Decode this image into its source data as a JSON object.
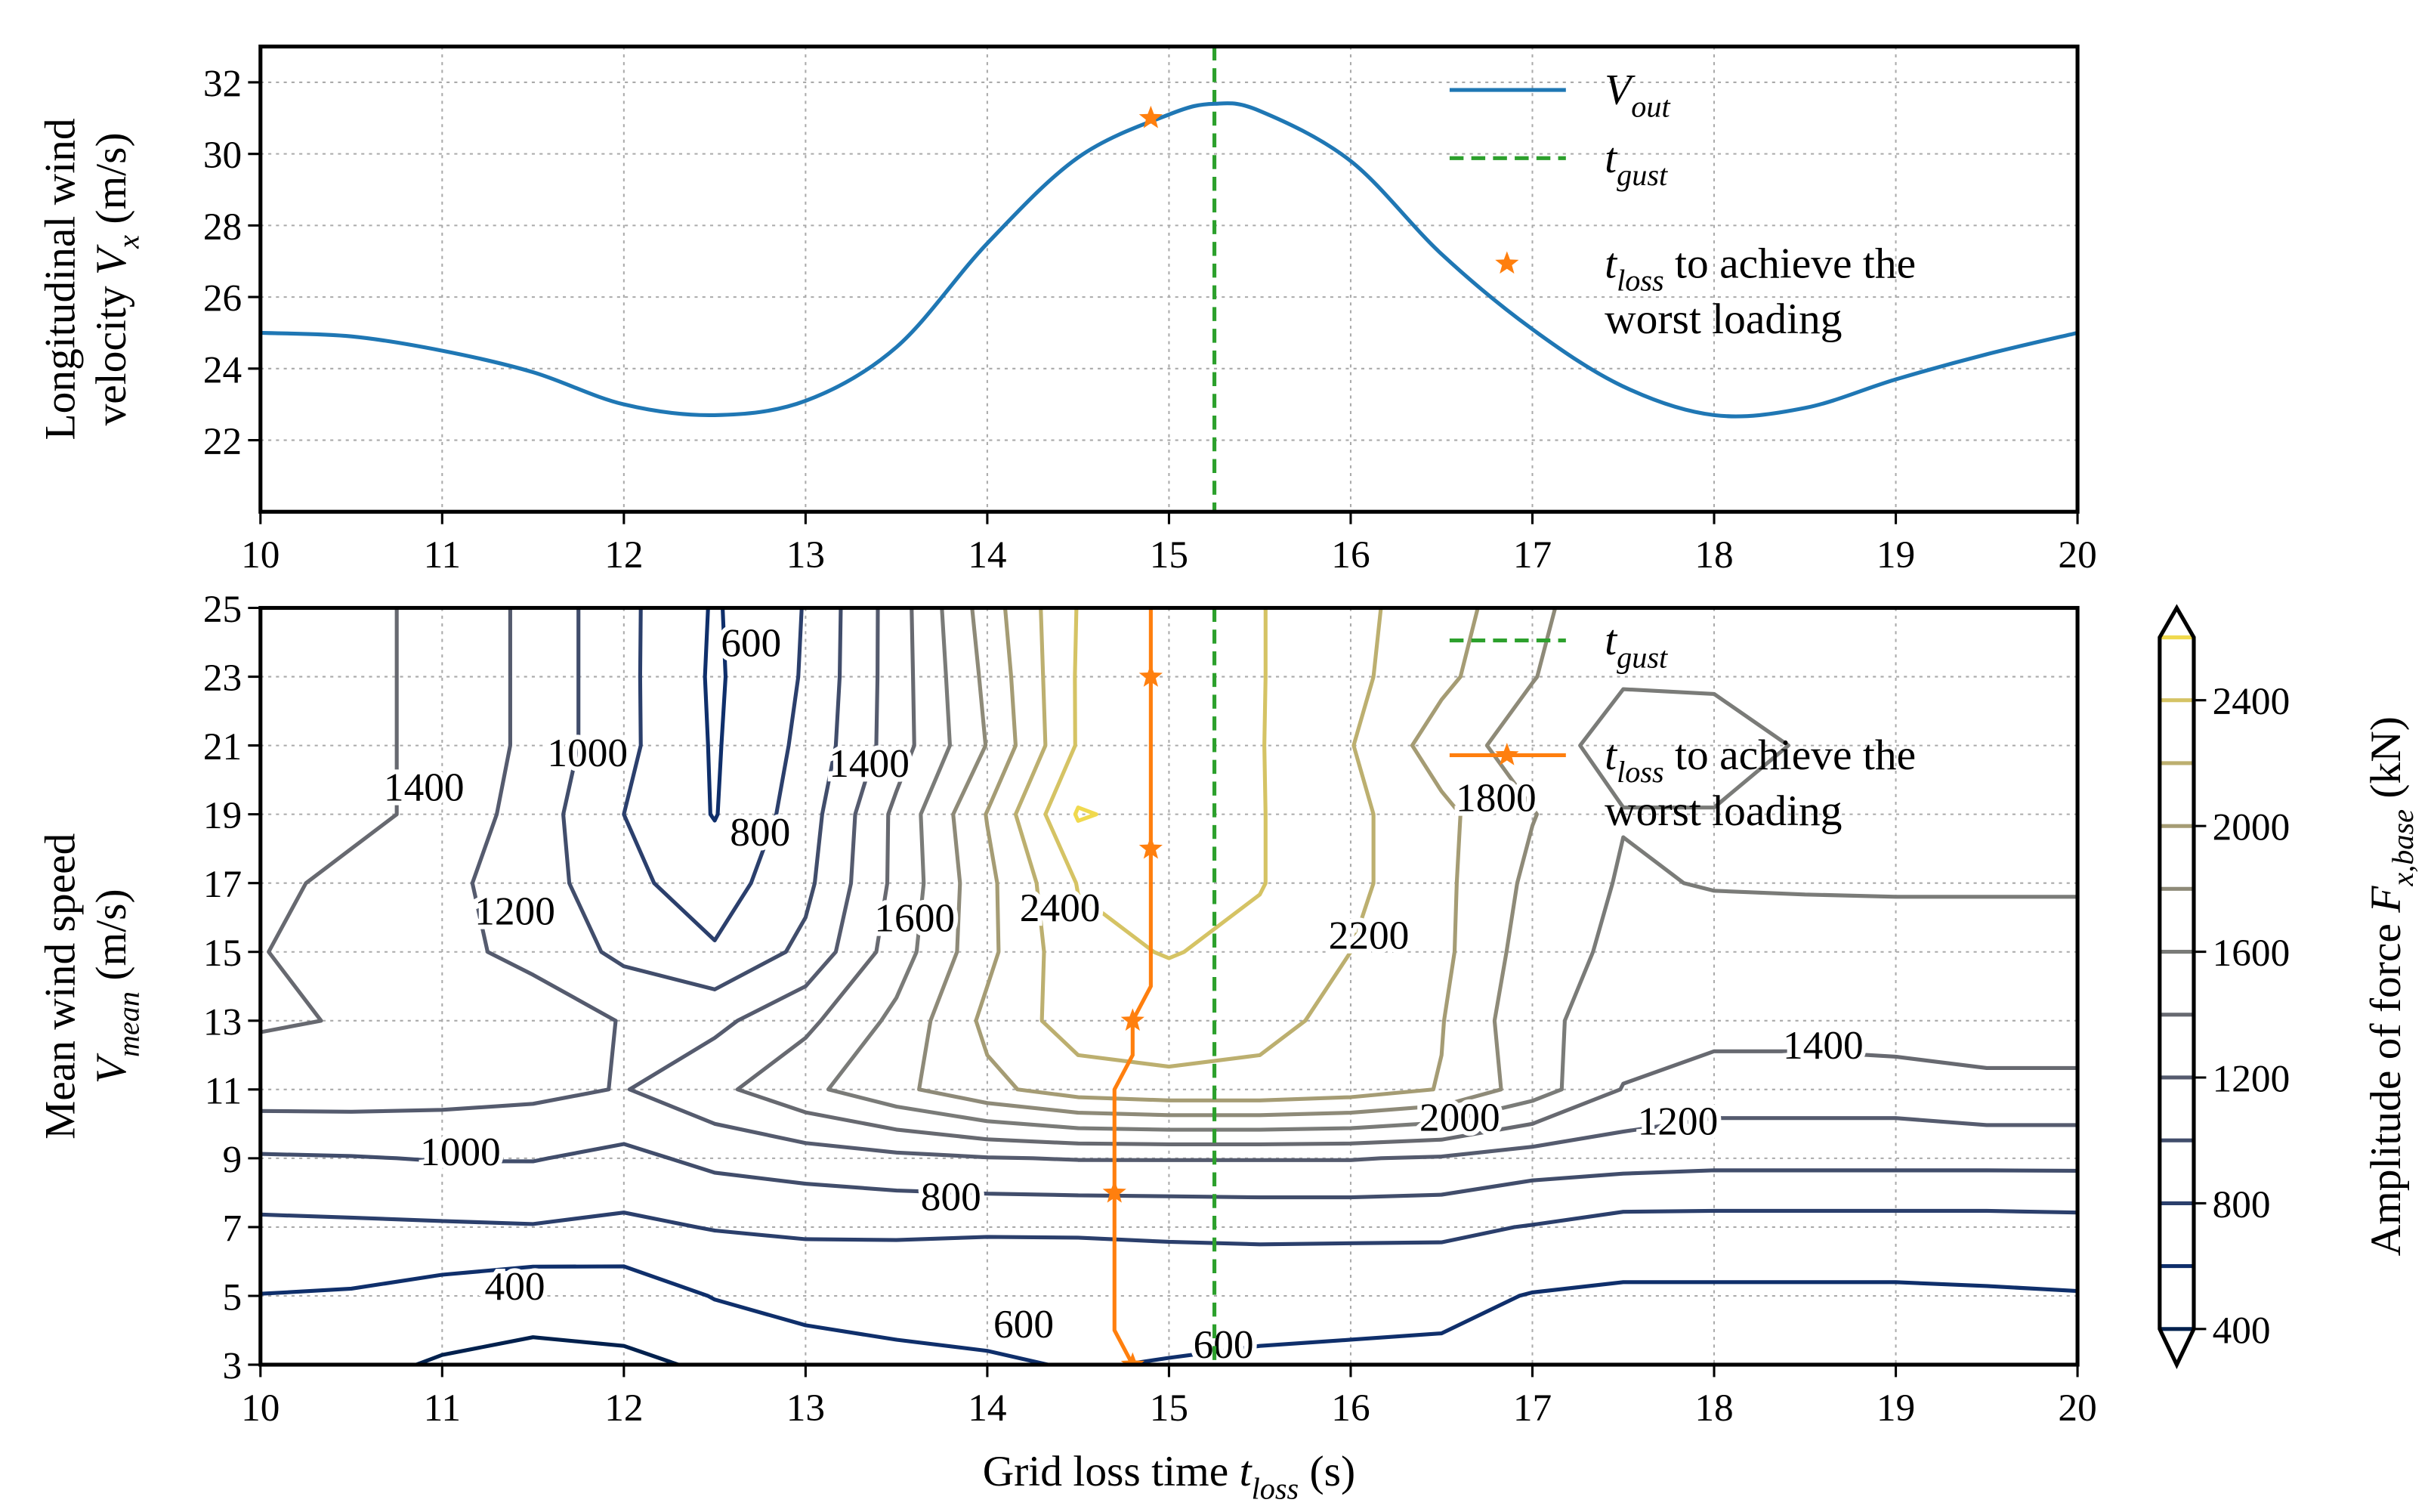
{
  "chart_data": [
    {
      "type": "line",
      "xlim": [
        10,
        20
      ],
      "ylim": [
        20,
        33
      ],
      "xticks": [
        10,
        11,
        12,
        13,
        14,
        15,
        16,
        17,
        18,
        19,
        20
      ],
      "yticks": [
        22,
        24,
        26,
        28,
        30,
        32
      ],
      "grid": true,
      "ylabel": [
        [
          "Longitudinal wind"
        ],
        [
          "velocity ",
          "V",
          {
            "sub": "x"
          },
          " (m/s)"
        ]
      ],
      "series": [
        {
          "name": [
            [
              "V",
              {
                "sub": "out"
              }
            ]
          ],
          "color": "#1f77b4",
          "x": [
            10,
            10.5,
            11,
            11.5,
            12,
            12.5,
            13,
            13.5,
            14,
            14.5,
            15,
            15.25,
            15.5,
            16,
            16.5,
            17,
            17.5,
            18,
            18.5,
            19,
            19.5,
            20
          ],
          "values": [
            25.0,
            24.9,
            24.5,
            23.9,
            23.0,
            22.7,
            23.1,
            24.6,
            27.5,
            29.9,
            31.1,
            31.4,
            31.2,
            29.8,
            27.2,
            25.1,
            23.5,
            22.7,
            22.9,
            23.7,
            24.4,
            25.0
          ]
        },
        {
          "name": [
            [
              "t",
              {
                "sub": "loss"
              },
              " to achieve the"
            ],
            [
              "worst loading"
            ]
          ],
          "color": "#ff7f0e",
          "marker": "star",
          "x": [
            14.9
          ],
          "values": [
            31.0
          ]
        }
      ],
      "vlines": [
        {
          "name": [
            [
              "t",
              {
                "sub": "gust"
              }
            ]
          ],
          "x": 15.25,
          "color": "#2ca02c",
          "style": "dashed"
        }
      ]
    },
    {
      "type": "contour",
      "xlim": [
        10,
        20
      ],
      "ylim": [
        3,
        25
      ],
      "xticks": [
        10,
        11,
        12,
        13,
        14,
        15,
        16,
        17,
        18,
        19,
        20
      ],
      "yticks": [
        3,
        5,
        7,
        9,
        11,
        13,
        15,
        17,
        19,
        21,
        23,
        25
      ],
      "grid": true,
      "xlabel": [
        [
          "Grid loss time ",
          "t",
          {
            "sub": "loss"
          },
          " (s)"
        ]
      ],
      "ylabel": [
        [
          "Mean wind speed"
        ],
        [
          "V",
          {
            "sub": "mean"
          },
          " (m/s)"
        ]
      ],
      "x": [
        10,
        10.5,
        11,
        11.5,
        12,
        12.5,
        13,
        13.5,
        14,
        14.5,
        15,
        15.5,
        16,
        16.5,
        17,
        17.5,
        18,
        18.5,
        19,
        19.5,
        20
      ],
      "y": [
        3,
        5,
        7,
        9,
        11,
        13,
        15,
        17,
        19,
        21,
        23,
        25
      ],
      "z": [
        [
          480,
          450,
          380,
          360,
          370,
          420,
          520,
          560,
          580,
          610,
          590,
          570,
          560,
          550,
          520,
          500,
          500,
          500,
          500,
          500,
          500
        ],
        [
          595,
          580,
          520,
          460,
          480,
          610,
          660,
          670,
          680,
          690,
          690,
          680,
          670,
          660,
          590,
          570,
          570,
          570,
          570,
          580,
          590
        ],
        [
          760,
          770,
          780,
          790,
          760,
          810,
          830,
          830,
          820,
          820,
          830,
          840,
          840,
          840,
          790,
          720,
          720,
          720,
          720,
          720,
          730
        ],
        [
          980,
          990,
          1010,
          1010,
          950,
          1050,
          1100,
          1150,
          1190,
          1210,
          1210,
          1210,
          1210,
          1180,
          1100,
          1080,
          1060,
          1060,
          1060,
          1060,
          1060
        ],
        [
          1300,
          1300,
          1280,
          1250,
          1190,
          1350,
          1550,
          1750,
          1950,
          2100,
          2150,
          2150,
          2100,
          1990,
          1700,
          1390,
          1300,
          1300,
          1300,
          1350,
          1350
        ],
        [
          1420,
          1390,
          1350,
          1300,
          1190,
          1150,
          1350,
          1650,
          2050,
          2300,
          2300,
          2250,
          2150,
          2010,
          1650,
          1510,
          1480,
          1480,
          1510,
          1510,
          1510
        ],
        [
          1410,
          1300,
          1250,
          1150,
          950,
          820,
          1050,
          1500,
          1950,
          2350,
          2410,
          2350,
          2200,
          2050,
          1700,
          1550,
          1520,
          1550,
          1560,
          1560,
          1560
        ],
        [
          1450,
          1350,
          1250,
          1100,
          850,
          700,
          950,
          1450,
          1950,
          2410,
          2450,
          2410,
          2250,
          2050,
          1750,
          1580,
          1610,
          1610,
          1610,
          1610,
          1610
        ],
        [
          1550,
          1450,
          1350,
          1100,
          800,
          590,
          900,
          1450,
          2010,
          2620,
          2520,
          2410,
          2250,
          2050,
          1810,
          1610,
          1610,
          1620,
          1650,
          1650,
          1650
        ],
        [
          1550,
          1450,
          1350,
          1150,
          850,
          580,
          850,
          1300,
          1810,
          2420,
          2450,
          2410,
          2210,
          1900,
          1700,
          1510,
          1510,
          1620,
          1650,
          1650,
          1650
        ],
        [
          1520,
          1450,
          1350,
          1150,
          850,
          570,
          820,
          1300,
          1850,
          2420,
          2450,
          2410,
          2250,
          2050,
          1810,
          1620,
          1630,
          1650,
          1650,
          1650,
          1650
        ],
        [
          1510,
          1450,
          1350,
          1150,
          850,
          580,
          810,
          1300,
          1900,
          2410,
          2450,
          2410,
          2250,
          2100,
          1850,
          1650,
          1650,
          1650,
          1650,
          1650,
          1650
        ]
      ],
      "levels": [
        400,
        600,
        800,
        1000,
        1200,
        1400,
        1600,
        1800,
        2000,
        2200,
        2400,
        2600
      ],
      "level_colors": [
        "#00204d",
        "#0f2f6b",
        "#2b3f6c",
        "#414d6b",
        "#555b6e",
        "#676970",
        "#7a7b78",
        "#8e8a78",
        "#a59c74",
        "#bcaf6f",
        "#d5c364",
        "#f0d94e"
      ],
      "colorbar": {
        "label": [
          [
            "Amplitude of force ",
            "F",
            {
              "sub": "x,base"
            },
            " (kN)"
          ]
        ],
        "lim": [
          400,
          2600
        ],
        "ticks": [
          400,
          800,
          1200,
          1600,
          2000,
          2400
        ],
        "extend": "both"
      },
      "contour_labels": [
        {
          "level": 1400,
          "x": 10.9,
          "y": 19.8
        },
        {
          "level": 1200,
          "x": 11.4,
          "y": 16.2
        },
        {
          "level": 1000,
          "x": 11.8,
          "y": 20.8
        },
        {
          "level": 600,
          "x": 12.7,
          "y": 24.0
        },
        {
          "level": 800,
          "x": 12.75,
          "y": 18.5
        },
        {
          "level": 1400,
          "x": 13.35,
          "y": 20.5
        },
        {
          "level": 1600,
          "x": 13.6,
          "y": 16.0
        },
        {
          "level": 2400,
          "x": 14.4,
          "y": 16.3
        },
        {
          "level": 2200,
          "x": 16.1,
          "y": 15.5
        },
        {
          "level": 1800,
          "x": 16.8,
          "y": 19.5
        },
        {
          "level": 2000,
          "x": 16.6,
          "y": 10.2
        },
        {
          "level": 1200,
          "x": 17.8,
          "y": 10.1
        },
        {
          "level": 1400,
          "x": 18.6,
          "y": 12.3
        },
        {
          "level": 1000,
          "x": 11.1,
          "y": 9.2
        },
        {
          "level": 800,
          "x": 13.8,
          "y": 7.9
        },
        {
          "level": 400,
          "x": 11.4,
          "y": 5.3
        },
        {
          "level": 600,
          "x": 14.2,
          "y": 4.2
        },
        {
          "level": 600,
          "x": 15.3,
          "y": 3.6
        }
      ],
      "vlines": [
        {
          "name": [
            [
              "t",
              {
                "sub": "gust"
              }
            ]
          ],
          "x": 15.25,
          "color": "#2ca02c",
          "style": "dashed"
        }
      ],
      "series": [
        {
          "name": [
            [
              "t",
              {
                "sub": "loss"
              },
              " to achieve the"
            ],
            [
              "worst loading"
            ]
          ],
          "color": "#ff7f0e",
          "marker": "star",
          "marker_every": 5,
          "x": [
            14.8,
            14.7,
            14.7,
            14.7,
            14.7,
            14.7,
            14.7,
            14.7,
            14.7,
            14.8,
            14.8,
            14.9,
            14.9,
            14.9,
            14.9,
            14.9,
            14.9,
            14.9,
            14.9,
            14.9,
            14.9,
            14.9,
            14.9
          ],
          "values": [
            3,
            4,
            5,
            6,
            7,
            8,
            9,
            10,
            11,
            12,
            13,
            14,
            15,
            16,
            17,
            18,
            19,
            20,
            21,
            22,
            23,
            24,
            25
          ]
        }
      ]
    }
  ]
}
